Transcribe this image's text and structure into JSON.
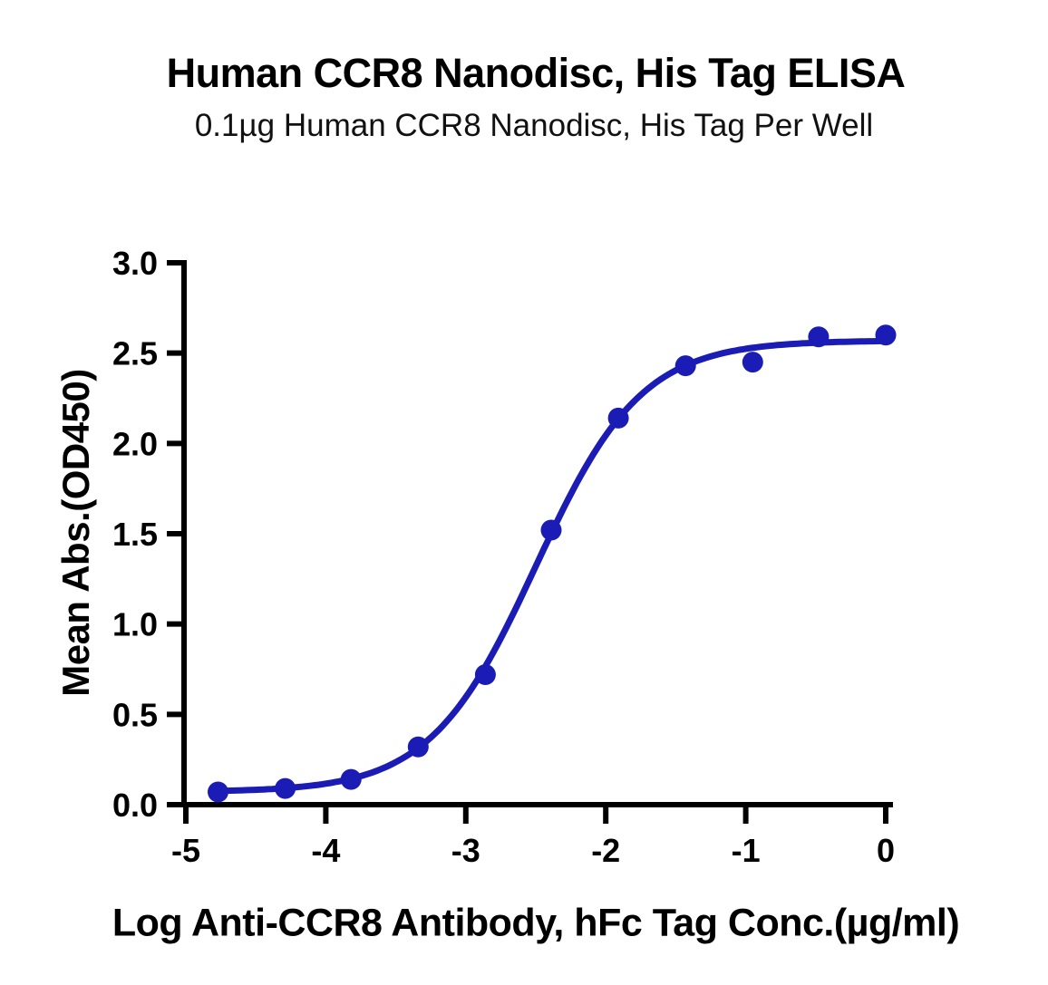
{
  "chart_data": {
    "type": "scatter",
    "title": "Human CCR8 Nanodisc, His Tag ELISA",
    "subtitle": "0.1µg Human CCR8 Nanodisc, His Tag Per Well",
    "xlabel": "Log Anti-CCR8 Antibody, hFc Tag Conc.(µg/ml)",
    "ylabel": "Mean Abs.(OD450)",
    "xlim": [
      -5,
      0
    ],
    "ylim": [
      0,
      3
    ],
    "xticks": [
      -5,
      -4,
      -3,
      -2,
      -1,
      0
    ],
    "xtick_labels": [
      "-5",
      "-4",
      "-3",
      "-2",
      "-1",
      "0"
    ],
    "yticks": [
      0.0,
      0.5,
      1.0,
      1.5,
      2.0,
      2.5,
      3.0
    ],
    "ytick_labels": [
      "0.0",
      "0.5",
      "1.0",
      "1.5",
      "2.0",
      "2.5",
      "3.0"
    ],
    "grid": false,
    "legend": "none",
    "series": [
      {
        "name": "Anti-CCR8 Antibody, hFc Tag",
        "x": [
          -4.77,
          -4.29,
          -3.82,
          -3.34,
          -2.86,
          -2.39,
          -1.91,
          -1.43,
          -0.95,
          -0.48,
          0.0
        ],
        "y": [
          0.07,
          0.09,
          0.14,
          0.32,
          0.72,
          1.52,
          2.14,
          2.43,
          2.45,
          2.59,
          2.6
        ]
      }
    ],
    "fit": {
      "model": "4PL",
      "bottom": 0.07,
      "top": 2.57,
      "logEC50": -2.5,
      "hill": 1.15
    },
    "colors": {
      "series": "#1B1CB5",
      "axis": "#000000",
      "text": "#000000"
    }
  }
}
